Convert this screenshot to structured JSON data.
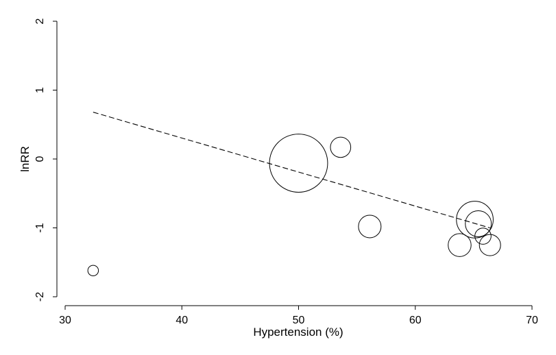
{
  "chart_data": {
    "type": "scatter",
    "title": "",
    "xlabel": "Hypertension (%)",
    "ylabel": "lnRR",
    "xlim": [
      30,
      70
    ],
    "ylim": [
      -2,
      2
    ],
    "xticks": [
      30,
      40,
      50,
      60,
      70
    ],
    "yticks": [
      -2,
      -1,
      0,
      1,
      2
    ],
    "grid": false,
    "legend": "none",
    "series": [
      {
        "kind": "bubble",
        "points": [
          {
            "x": 32.4,
            "y": -1.62,
            "size": 0.15
          },
          {
            "x": 50.0,
            "y": -0.06,
            "size": 4.5
          },
          {
            "x": 53.6,
            "y": 0.17,
            "size": 0.55
          },
          {
            "x": 56.1,
            "y": -0.98,
            "size": 0.68
          },
          {
            "x": 63.8,
            "y": -1.25,
            "size": 0.7
          },
          {
            "x": 65.1,
            "y": -0.88,
            "size": 1.8
          },
          {
            "x": 65.4,
            "y": -0.94,
            "size": 0.9
          },
          {
            "x": 65.8,
            "y": -1.12,
            "size": 0.35
          },
          {
            "x": 66.4,
            "y": -1.25,
            "size": 0.6
          }
        ]
      },
      {
        "kind": "fit-line",
        "style": "dashed",
        "points": [
          {
            "x": 32.4,
            "y": 0.68
          },
          {
            "x": 66.4,
            "y": -1.0
          }
        ]
      }
    ],
    "colors": {
      "marker_stroke": "#000000",
      "line": "#000000",
      "background": "#ffffff"
    }
  }
}
